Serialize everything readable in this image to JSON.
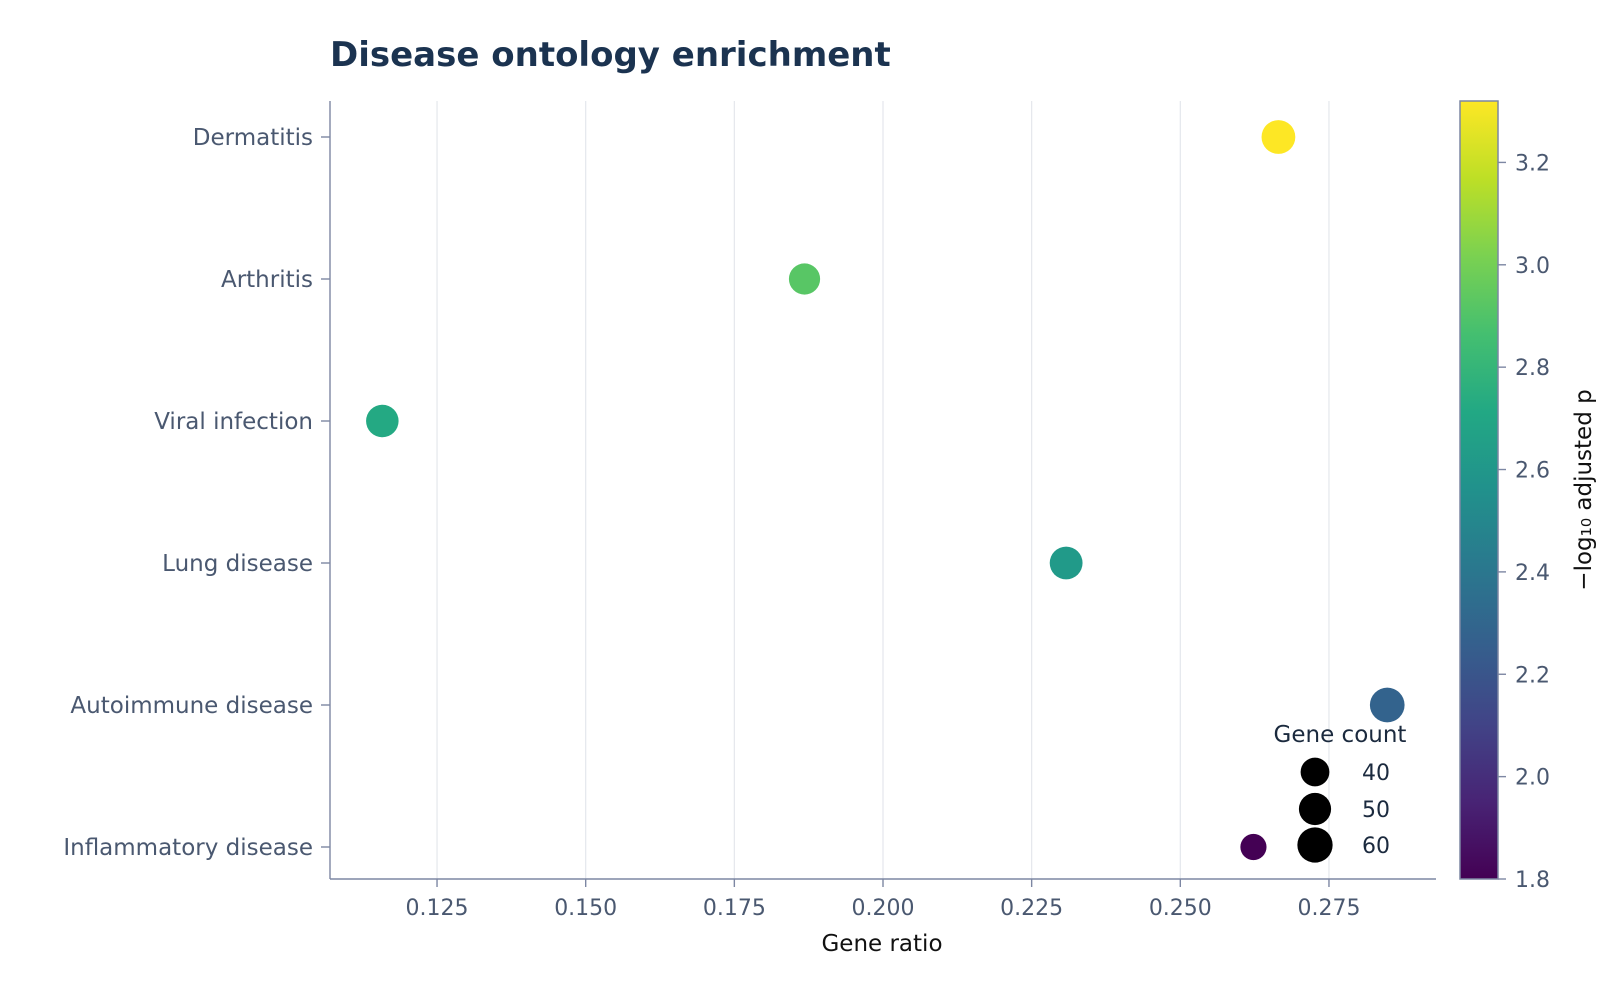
{
  "chart_data": {
    "type": "scatter",
    "title": "Disease ontology enrichment",
    "xlabel": "Gene ratio",
    "ylabel": "",
    "xlim": [
      0.107,
      0.293
    ],
    "xticks": [
      "0.125",
      "0.150",
      "0.175",
      "0.200",
      "0.225",
      "0.250",
      "0.275"
    ],
    "xtick_values": [
      0.125,
      0.15,
      0.175,
      0.2,
      0.225,
      0.25,
      0.275
    ],
    "grid": "vertical",
    "categories": [
      "Dermatitis",
      "Arthritis",
      "Viral infection",
      "Lung disease",
      "Autoimmune disease",
      "Inflammatory disease"
    ],
    "points": [
      {
        "category": "Dermatitis",
        "gene_ratio": 0.2665,
        "neg_log10_padj": 3.32,
        "gene_count": 55
      },
      {
        "category": "Arthritis",
        "gene_ratio": 0.1868,
        "neg_log10_padj": 2.92,
        "gene_count": 47
      },
      {
        "category": "Viral infection",
        "gene_ratio": 0.1158,
        "neg_log10_padj": 2.72,
        "gene_count": 51
      },
      {
        "category": "Lung disease",
        "gene_ratio": 0.2308,
        "neg_log10_padj": 2.62,
        "gene_count": 52
      },
      {
        "category": "Autoimmune disease",
        "gene_ratio": 0.2848,
        "neg_log10_padj": 2.28,
        "gene_count": 58
      },
      {
        "category": "Inflammatory disease",
        "gene_ratio": 0.2623,
        "neg_log10_padj": 1.8,
        "gene_count": 33
      }
    ],
    "colorbar": {
      "label": "−log₁₀ adjusted p",
      "colormap": "viridis",
      "range": [
        1.8,
        3.32
      ],
      "ticks": [
        "1.8",
        "2.0",
        "2.2",
        "2.4",
        "2.6",
        "2.8",
        "3.0",
        "3.2"
      ],
      "tick_values": [
        1.8,
        2.0,
        2.2,
        2.4,
        2.6,
        2.8,
        3.0,
        3.2
      ]
    },
    "size_legend": {
      "title": "Gene count",
      "placement": "lower-right",
      "entries": [
        {
          "label": "40",
          "value": 40
        },
        {
          "label": "50",
          "value": 50
        },
        {
          "label": "60",
          "value": 60
        }
      ]
    },
    "colors": {
      "title": "#1b3350",
      "axis": "#7d87a3",
      "grid": "#e4e7ec",
      "tick_text": "#4a5870"
    }
  }
}
